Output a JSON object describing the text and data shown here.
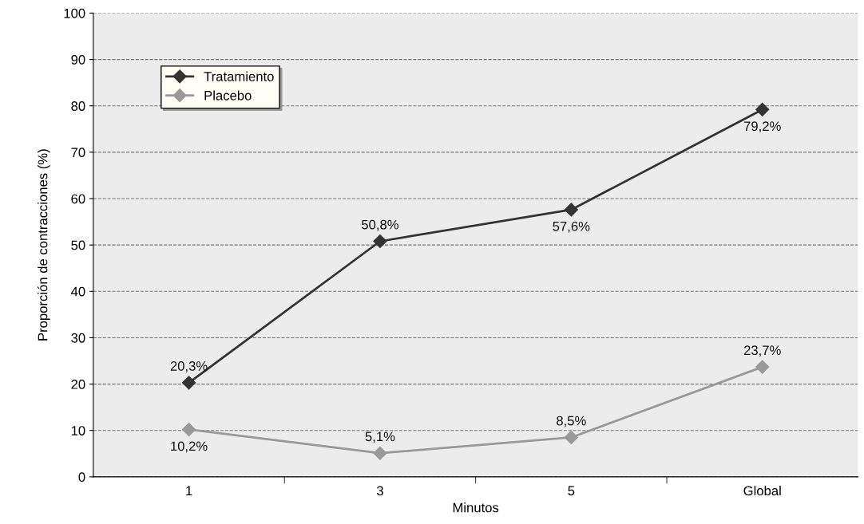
{
  "chart_data": {
    "type": "line",
    "xlabel": "Minutos",
    "ylabel": "Proporción de contracciones (%)",
    "categories": [
      "1",
      "3",
      "5",
      "Global"
    ],
    "series": [
      {
        "name": "Tratamiento",
        "color": "#333333",
        "values": [
          20.3,
          50.8,
          57.6,
          79.2
        ],
        "value_labels": [
          "20,3%",
          "50,8%",
          "57,6%",
          "79,2%"
        ]
      },
      {
        "name": "Placebo",
        "color": "#999999",
        "values": [
          10.2,
          5.1,
          8.5,
          23.7
        ],
        "value_labels": [
          "10,2%",
          "5,1%",
          "8,5%",
          "23,7%"
        ]
      }
    ],
    "ylim": [
      0,
      100
    ],
    "yticks": [
      0,
      10,
      20,
      30,
      40,
      50,
      60,
      70,
      80,
      90,
      100
    ],
    "grid": "y",
    "legend": "top left",
    "marker": "diamond",
    "line_style": "solid"
  }
}
